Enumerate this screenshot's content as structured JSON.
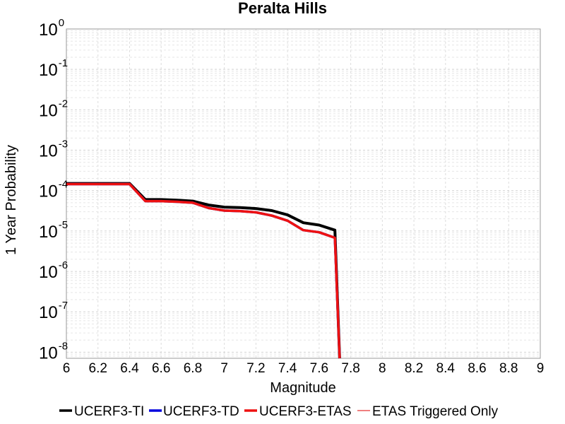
{
  "chart_data": {
    "type": "line",
    "title": "Peralta Hills",
    "xlabel": "Magnitude",
    "ylabel": "1 Year Probability",
    "xlim": [
      6,
      9
    ],
    "ylim_log10": [
      -8.15,
      0
    ],
    "yscale": "log",
    "grid": true,
    "legend_placement": "bottom",
    "x_ticks": [
      "6",
      "6.2",
      "6.4",
      "6.6",
      "6.8",
      "7",
      "7.2",
      "7.4",
      "7.6",
      "7.8",
      "8",
      "8.2",
      "8.4",
      "8.6",
      "8.8",
      "9"
    ],
    "y_ticks": [
      {
        "base": "10",
        "exp": "0",
        "value": 1
      },
      {
        "base": "10",
        "exp": "-1",
        "value": 0.1
      },
      {
        "base": "10",
        "exp": "-2",
        "value": 0.01
      },
      {
        "base": "10",
        "exp": "-3",
        "value": 0.001
      },
      {
        "base": "10",
        "exp": "-4",
        "value": 0.0001
      },
      {
        "base": "10",
        "exp": "-5",
        "value": 1e-05
      },
      {
        "base": "10",
        "exp": "-6",
        "value": 1e-06
      },
      {
        "base": "10",
        "exp": "-7",
        "value": 1e-07
      },
      {
        "base": "10",
        "exp": "-8",
        "value": 1e-08
      }
    ],
    "series": [
      {
        "name": "UCERF3-TI",
        "color": "#000000",
        "x": [
          6.0,
          6.1,
          6.2,
          6.3,
          6.4,
          6.5,
          6.6,
          6.7,
          6.8,
          6.9,
          7.0,
          7.1,
          7.2,
          7.3,
          7.4,
          7.5,
          7.6,
          7.7,
          7.73
        ],
        "y": [
          0.00015,
          0.00015,
          0.00015,
          0.00015,
          0.00015,
          6e-05,
          6e-05,
          5.8e-05,
          5.5e-05,
          4.4e-05,
          3.9e-05,
          3.8e-05,
          3.6e-05,
          3.2e-05,
          2.5e-05,
          1.6e-05,
          1.4e-05,
          1.05e-05,
          5e-09
        ]
      },
      {
        "name": "UCERF3-TD",
        "color": "#0000dd",
        "x": [
          6.0,
          6.1,
          6.2,
          6.3,
          6.4,
          6.5,
          6.6,
          6.7,
          6.8,
          6.9,
          7.0,
          7.1,
          7.2,
          7.3,
          7.4,
          7.5,
          7.6,
          7.7,
          7.73
        ],
        "y": [
          0.000145,
          0.000145,
          0.000145,
          0.000145,
          0.000145,
          5.5e-05,
          5.5e-05,
          5.3e-05,
          5e-05,
          3.7e-05,
          3.2e-05,
          3.1e-05,
          2.9e-05,
          2.4e-05,
          1.8e-05,
          1.05e-05,
          9.3e-06,
          6.8e-06,
          5e-09
        ]
      },
      {
        "name": "UCERF3-ETAS",
        "color": "#ee1111",
        "x": [
          6.0,
          6.1,
          6.2,
          6.3,
          6.4,
          6.5,
          6.6,
          6.7,
          6.8,
          6.9,
          7.0,
          7.1,
          7.2,
          7.3,
          7.4,
          7.5,
          7.6,
          7.7,
          7.73
        ],
        "y": [
          0.000145,
          0.000145,
          0.000145,
          0.000145,
          0.000145,
          5.5e-05,
          5.5e-05,
          5.3e-05,
          5e-05,
          3.7e-05,
          3.2e-05,
          3.1e-05,
          2.9e-05,
          2.4e-05,
          1.8e-05,
          1.05e-05,
          9.3e-06,
          6.8e-06,
          5e-09
        ]
      },
      {
        "name": "ETAS Triggered Only",
        "color": "#f08080",
        "x": [],
        "y": []
      }
    ]
  }
}
